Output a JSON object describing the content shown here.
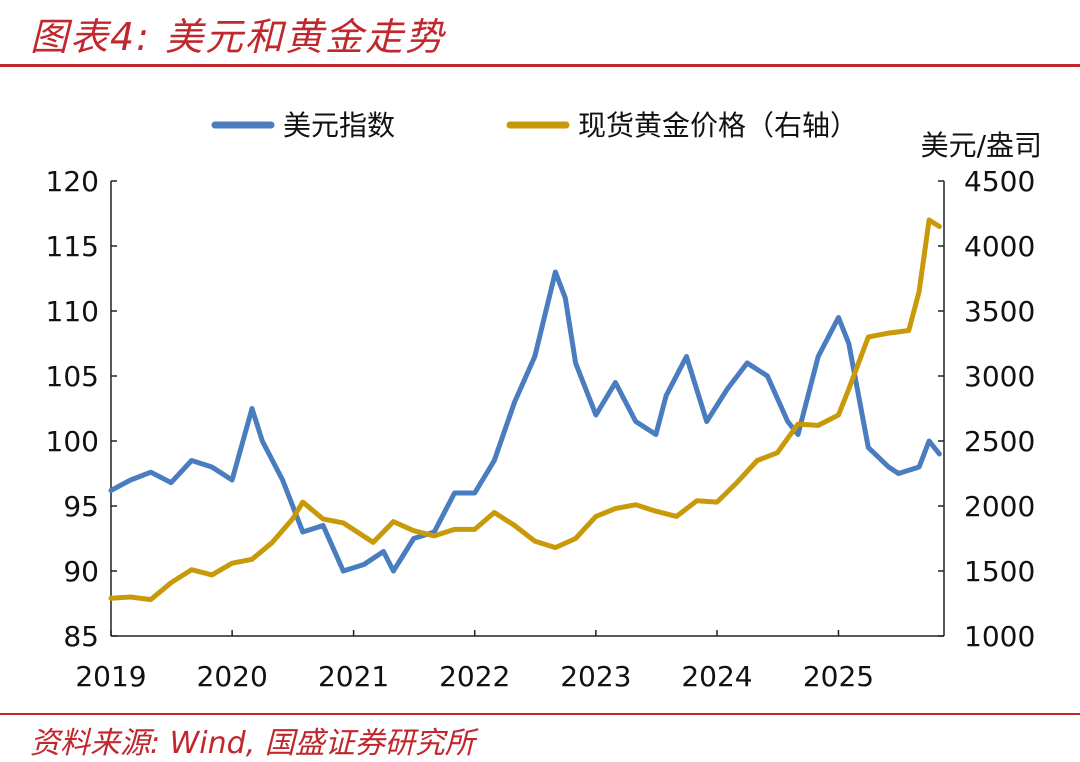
{
  "header": {
    "title": "图表4:  美元和黄金走势"
  },
  "footer": {
    "source": "资料来源:  Wind,  国盛证券研究所"
  },
  "colors": {
    "accent": "#c0282d",
    "usd": "#4a7cc0",
    "gold": "#c89a0a"
  },
  "chart_data": {
    "type": "line",
    "title": "",
    "legend": {
      "placement": "top",
      "entries": [
        "美元指数",
        "现货黄金价格（右轴）"
      ]
    },
    "grid": false,
    "xlabel": "",
    "x_ticks": [
      "2019",
      "2020",
      "2021",
      "2022",
      "2023",
      "2024",
      "2025"
    ],
    "xlim": [
      "2019-01-01",
      "2025-11-15"
    ],
    "y_left": {
      "label": "",
      "lim": [
        85,
        120
      ],
      "ticks": [
        "85",
        "90",
        "95",
        "100",
        "105",
        "110",
        "115",
        "120"
      ]
    },
    "y_right": {
      "label": "美元/盎司",
      "lim": [
        1000,
        4500
      ],
      "ticks": [
        "1000",
        "1500",
        "2000",
        "2500",
        "3000",
        "3500",
        "4000",
        "4500"
      ]
    },
    "series": [
      {
        "name": "美元指数",
        "axis": "left",
        "x": [
          "2019-01",
          "2019-03",
          "2019-05",
          "2019-07",
          "2019-09",
          "2019-11",
          "2020-01",
          "2020-03",
          "2020-04",
          "2020-06",
          "2020-08",
          "2020-10",
          "2020-12",
          "2021-02",
          "2021-04",
          "2021-05",
          "2021-07",
          "2021-09",
          "2021-11",
          "2022-01",
          "2022-03",
          "2022-05",
          "2022-07",
          "2022-09",
          "2022-10",
          "2022-11",
          "2023-01",
          "2023-03",
          "2023-05",
          "2023-07",
          "2023-08",
          "2023-10",
          "2023-12",
          "2024-02",
          "2024-04",
          "2024-06",
          "2024-08",
          "2024-09",
          "2024-11",
          "2025-01",
          "2025-02",
          "2025-04",
          "2025-06",
          "2025-07",
          "2025-09",
          "2025-10",
          "2025-11"
        ],
        "values": [
          96.2,
          97.0,
          97.6,
          96.8,
          98.5,
          98.0,
          97.0,
          102.5,
          100.0,
          97.0,
          93.0,
          93.5,
          90.0,
          90.5,
          91.5,
          90.0,
          92.5,
          93.0,
          96.0,
          96.0,
          98.5,
          103.0,
          106.5,
          113.0,
          111.0,
          106.0,
          102.0,
          104.5,
          101.5,
          100.5,
          103.5,
          106.5,
          101.5,
          104.0,
          106.0,
          105.0,
          101.5,
          100.5,
          106.5,
          109.5,
          107.5,
          99.5,
          98.0,
          97.5,
          98.0,
          100.0,
          99.0
        ]
      },
      {
        "name": "现货黄金价格（右轴）",
        "axis": "right",
        "x": [
          "2019-01",
          "2019-03",
          "2019-05",
          "2019-07",
          "2019-09",
          "2019-11",
          "2020-01",
          "2020-03",
          "2020-05",
          "2020-07",
          "2020-08",
          "2020-10",
          "2020-12",
          "2021-03",
          "2021-05",
          "2021-07",
          "2021-09",
          "2021-11",
          "2022-01",
          "2022-03",
          "2022-05",
          "2022-07",
          "2022-09",
          "2022-11",
          "2023-01",
          "2023-03",
          "2023-05",
          "2023-07",
          "2023-09",
          "2023-11",
          "2024-01",
          "2024-03",
          "2024-05",
          "2024-07",
          "2024-09",
          "2024-11",
          "2025-01",
          "2025-02",
          "2025-04",
          "2025-06",
          "2025-08",
          "2025-09",
          "2025-10",
          "2025-11"
        ],
        "values": [
          1290,
          1300,
          1280,
          1410,
          1510,
          1470,
          1560,
          1590,
          1720,
          1900,
          2030,
          1900,
          1870,
          1720,
          1880,
          1810,
          1770,
          1820,
          1820,
          1950,
          1850,
          1730,
          1680,
          1750,
          1920,
          1980,
          2010,
          1960,
          1920,
          2040,
          2030,
          2180,
          2350,
          2410,
          2630,
          2620,
          2700,
          2900,
          3300,
          3330,
          3350,
          3650,
          4200,
          4150
        ]
      }
    ]
  }
}
